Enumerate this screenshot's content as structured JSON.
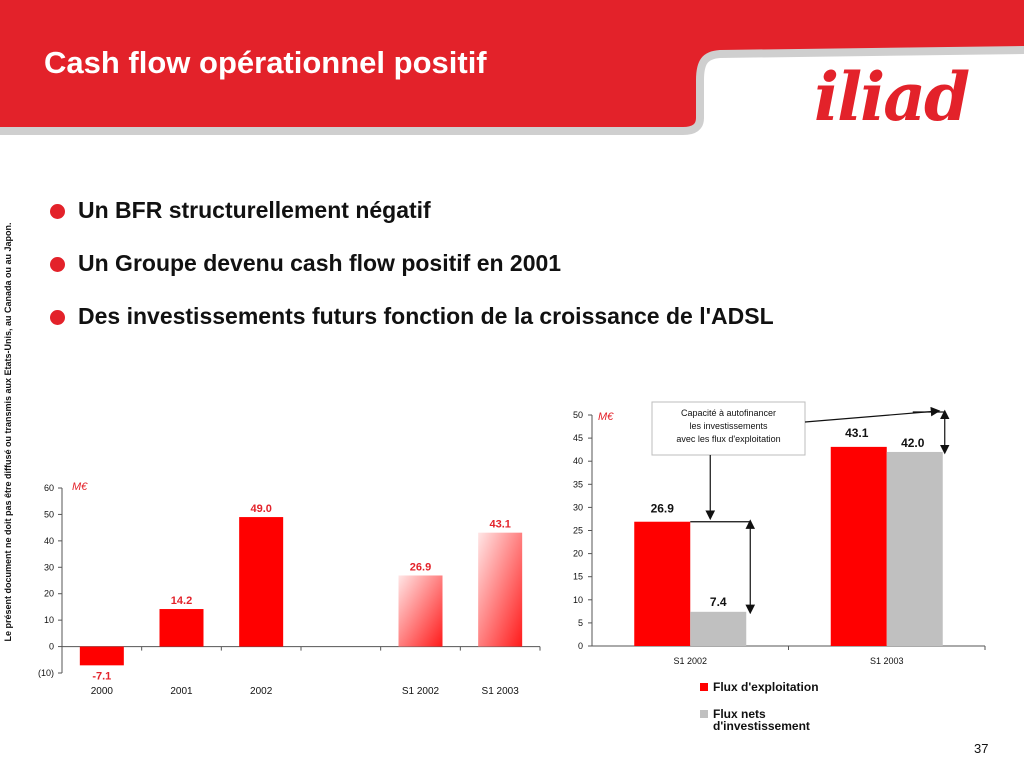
{
  "slide": {
    "title": "Cash flow opérationnel positif",
    "logo_text": "iliad",
    "side_note": "Le présent document ne doit pas être diffusé ou transmis aux Etats-Unis, au Canada ou au Japon.",
    "bullets": [
      "Un BFR structurellement négatif",
      "Un Groupe devenu cash flow positif en 2001",
      "Des investissements futurs fonction de la croissance de l'ADSL"
    ],
    "page_number": "37"
  },
  "colors": {
    "brand_red": "#e3222a",
    "series_red": "#ff0000",
    "series_grey": "#c0c0c0",
    "label_red": "#e3222a"
  },
  "chart_data": [
    {
      "type": "bar",
      "unit_label": "M€",
      "categories": [
        "2000",
        "2001",
        "2002",
        "",
        "S1 2002",
        "S1 2003"
      ],
      "values": [
        -7.1,
        14.2,
        49.0,
        null,
        26.9,
        43.1
      ],
      "value_labels": [
        "-7.1",
        "14.2",
        "49.0",
        "",
        "26.9",
        "43.1"
      ],
      "ylim": [
        -10,
        60
      ],
      "yticks": [
        -10,
        0,
        10,
        20,
        30,
        40,
        50,
        60
      ],
      "ytick_labels": [
        "(10)",
        "0",
        "10",
        "20",
        "30",
        "40",
        "50",
        "60"
      ],
      "gradient_from": "S1 2002"
    },
    {
      "type": "bar",
      "unit_label": "M€",
      "categories": [
        "S1 2002",
        "S1 2003"
      ],
      "series": [
        {
          "name": "Flux d'exploitation",
          "values": [
            26.9,
            43.1
          ],
          "labels": [
            "26.9",
            "43.1"
          ]
        },
        {
          "name": "Flux nets d'investissement",
          "values": [
            7.4,
            42.0
          ],
          "labels": [
            "7.4",
            "42.0"
          ]
        }
      ],
      "ylim": [
        0,
        50
      ],
      "yticks": [
        0,
        5,
        10,
        15,
        20,
        25,
        30,
        35,
        40,
        45,
        50
      ],
      "annotation": [
        "Capacité à autofinancer",
        "les investissements",
        "avec les flux d'exploitation"
      ],
      "legend_position": "bottom"
    }
  ]
}
